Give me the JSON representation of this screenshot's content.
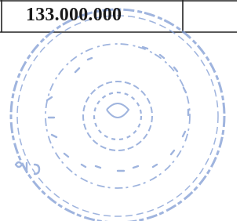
{
  "table": {
    "rows": [
      [
        "133.000.000"
      ]
    ]
  }
}
